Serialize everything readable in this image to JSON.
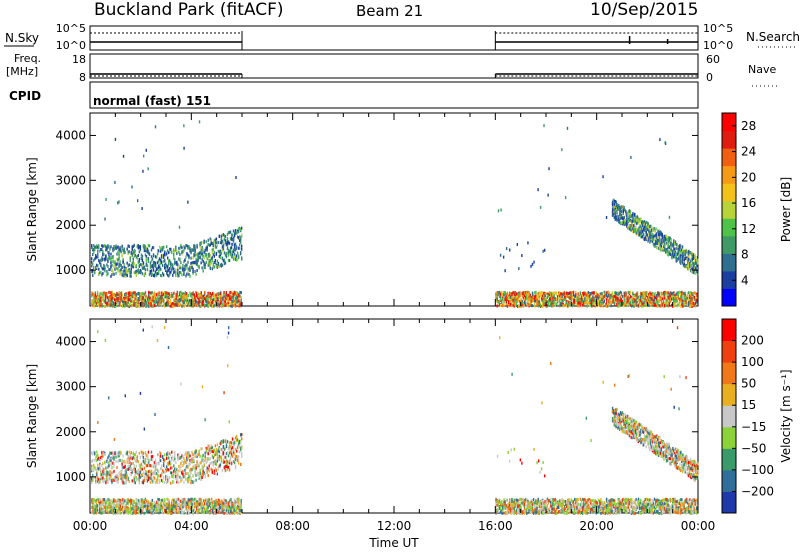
{
  "header": {
    "station": "Buckland Park (fitACF)",
    "beam": "Beam 21",
    "date": "10/Sep/2015"
  },
  "noise_panel": {
    "left_label": "N.Sky",
    "right_label": "N.Search",
    "right_ticks": [
      "10^5",
      "10^0"
    ],
    "left_ticks": [
      "10^5",
      "10^0"
    ]
  },
  "freq_panel": {
    "left_label": "Freq.",
    "left_unit": "[MHz]",
    "left_ticks": [
      "18",
      "8"
    ],
    "right_label": "Nave",
    "right_ticks": [
      "60",
      "0"
    ]
  },
  "cpid_panel": {
    "label": "CPID",
    "mode_text": "normal (fast) 151"
  },
  "chart_data": [
    {
      "type": "scatter",
      "name": "power",
      "ylabel": "Slant Range [km]",
      "yticks": [
        "4000",
        "3000",
        "2000",
        "1000"
      ],
      "ylim": [
        200,
        4500
      ],
      "xlim": [
        0,
        24
      ],
      "colorbar": {
        "label": "Power [dB]",
        "ticks": [
          "28",
          "24",
          "20",
          "16",
          "12",
          "8",
          "4"
        ],
        "range": [
          0,
          30
        ],
        "colors": [
          "#0000ff",
          "#1a3fa0",
          "#2f6f8f",
          "#3f9a66",
          "#4fc24a",
          "#b8d23a",
          "#f2c21a",
          "#f59a14",
          "#f06010",
          "#e01c10",
          "#ff0000"
        ]
      }
    },
    {
      "type": "scatter",
      "name": "velocity",
      "ylabel": "Slant Range [km]",
      "yticks": [
        "4000",
        "3000",
        "2000",
        "1000"
      ],
      "ylim": [
        200,
        4500
      ],
      "xlim": [
        0,
        24
      ],
      "colorbar": {
        "label": "Velocity [m s⁻¹]",
        "ticks": [
          "200",
          "100",
          "50",
          "15",
          "−15",
          "−50",
          "−100",
          "−200"
        ],
        "colors": [
          "#1f3aa8",
          "#2f6f9a",
          "#3a9a6a",
          "#8cd33a",
          "#c8c8c8",
          "#e8b020",
          "#f07818",
          "#f04010",
          "#ff0000"
        ]
      },
      "xticks": [
        "00:00",
        "04:00",
        "08:00",
        "12:00",
        "16:00",
        "20:00",
        "00:00"
      ],
      "xlabel": "Time UT"
    }
  ]
}
